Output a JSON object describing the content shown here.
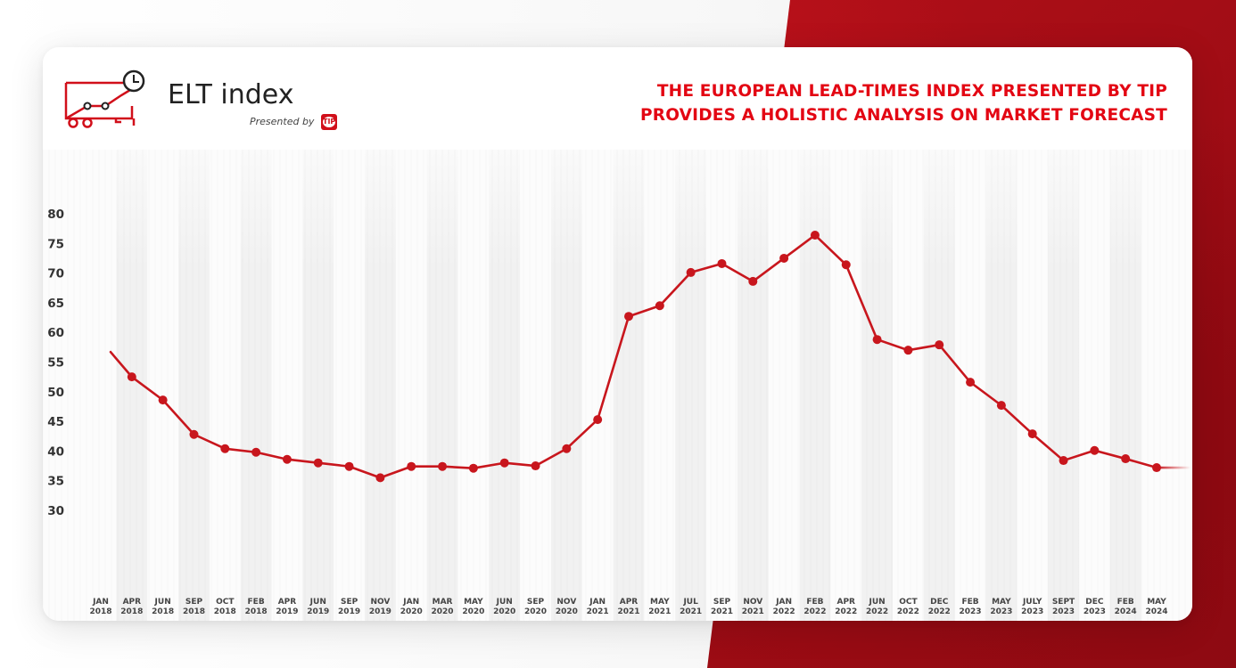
{
  "header": {
    "logo_title": "ELT index",
    "presented_by": "Presented by",
    "presenter_badge": "TIP",
    "headline_line1": "THE EUROPEAN LEAD-TIMES INDEX PRESENTED BY TIP",
    "headline_line2": "PROVIDES A HOLISTIC ANALYSIS ON MARKET FORECAST"
  },
  "colors": {
    "accent_red": "#e30613",
    "line_red": "#c8161d",
    "band_gray": "#f1f1f1",
    "text_dark": "#333333"
  },
  "chart_data": {
    "type": "line",
    "title": "ELT index",
    "subtitle": "THE EUROPEAN LEAD-TIMES INDEX PRESENTED BY TIP PROVIDES A HOLISTIC ANALYSIS ON MARKET FORECAST",
    "xlabel": "",
    "ylabel": "",
    "ylim": [
      30,
      80
    ],
    "yticks": [
      80,
      75,
      70,
      65,
      60,
      55,
      50,
      45,
      40,
      35,
      30
    ],
    "grid": false,
    "legend": null,
    "categories": [
      [
        "JAN",
        "2018"
      ],
      [
        "APR",
        "2018"
      ],
      [
        "JUN",
        "2018"
      ],
      [
        "SEP",
        "2018"
      ],
      [
        "OCT",
        "2018"
      ],
      [
        "FEB",
        "2018"
      ],
      [
        "APR",
        "2019"
      ],
      [
        "JUN",
        "2019"
      ],
      [
        "SEP",
        "2019"
      ],
      [
        "NOV",
        "2019"
      ],
      [
        "JAN",
        "2020"
      ],
      [
        "MAR",
        "2020"
      ],
      [
        "MAY",
        "2020"
      ],
      [
        "JUN",
        "2020"
      ],
      [
        "SEP",
        "2020"
      ],
      [
        "NOV",
        "2020"
      ],
      [
        "JAN",
        "2021"
      ],
      [
        "APR",
        "2021"
      ],
      [
        "MAY",
        "2021"
      ],
      [
        "JUL",
        "2021"
      ],
      [
        "SEP",
        "2021"
      ],
      [
        "NOV",
        "2021"
      ],
      [
        "JAN",
        "2022"
      ],
      [
        "FEB",
        "2022"
      ],
      [
        "APR",
        "2022"
      ],
      [
        "JUN",
        "2022"
      ],
      [
        "OCT",
        "2022"
      ],
      [
        "DEC",
        "2022"
      ],
      [
        "FEB",
        "2023"
      ],
      [
        "MAY",
        "2023"
      ],
      [
        "JULY",
        "2023"
      ],
      [
        "SEPT",
        "2023"
      ],
      [
        "DEC",
        "2023"
      ],
      [
        "FEB",
        "2024"
      ],
      [
        "MAY",
        "2024"
      ]
    ],
    "series": [
      {
        "name": "ELT index",
        "values": [
          56.7,
          52.5,
          48.6,
          42.8,
          40.4,
          39.8,
          38.6,
          38.0,
          37.4,
          35.5,
          37.4,
          37.4,
          37.1,
          38.0,
          37.5,
          40.4,
          45.3,
          62.7,
          64.5,
          70.1,
          71.6,
          68.6,
          72.5,
          76.4,
          71.4,
          58.8,
          57.0,
          57.9,
          51.6,
          47.7,
          42.9,
          38.4,
          40.1,
          38.7,
          37.2
        ],
        "markers": "all-except-first"
      }
    ]
  }
}
